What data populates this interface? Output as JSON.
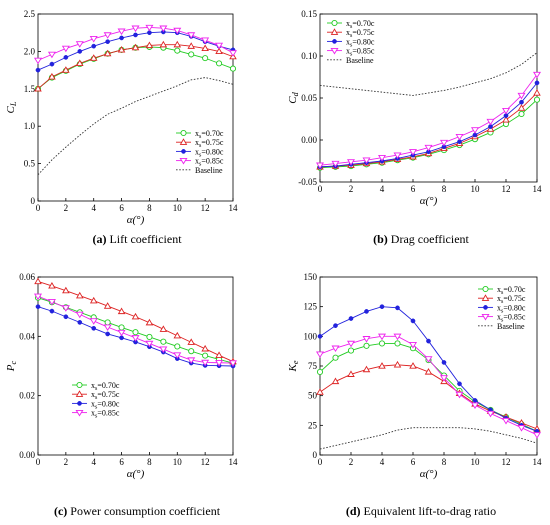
{
  "figure": {
    "panels": [
      {
        "letter": "(a)",
        "text": "Lift coefficient"
      },
      {
        "letter": "(b)",
        "text": "Drag coefficient"
      },
      {
        "letter": "(c)",
        "text": "Power consumption coefficient"
      },
      {
        "letter": "(d)",
        "text": "Equivalent lift-to-drag ratio"
      }
    ]
  },
  "colors": {
    "xs070": "#22cc22",
    "xs075": "#dd2222",
    "xs080": "#2222dd",
    "xs085": "#ee22ee",
    "baseline": "#333333"
  },
  "chart_data": [
    {
      "type": "line",
      "xlabel": "α(°)",
      "ylabel": "C_L",
      "xlim": [
        0,
        14
      ],
      "ylim": [
        0,
        2.5
      ],
      "xticks": [
        0,
        2,
        4,
        6,
        8,
        10,
        12,
        14
      ],
      "yticks": [
        0,
        0.5,
        1.0,
        1.5,
        2.0,
        2.5
      ],
      "ytick_labels": [
        "0",
        "0.5",
        "1.0",
        "1.5",
        "2.0",
        "2.5"
      ],
      "legend_position": "bottom-right",
      "x": [
        0,
        1,
        2,
        3,
        4,
        5,
        6,
        7,
        8,
        9,
        10,
        11,
        12,
        13,
        14
      ],
      "series": [
        {
          "name": "x_s=0.70c",
          "marker": "circle",
          "values": [
            1.5,
            1.65,
            1.74,
            1.83,
            1.9,
            1.97,
            2.02,
            2.05,
            2.06,
            2.05,
            2.01,
            1.96,
            1.91,
            1.84,
            1.77
          ]
        },
        {
          "name": "x_s=0.75c",
          "marker": "triangle-up",
          "values": [
            1.5,
            1.66,
            1.75,
            1.84,
            1.91,
            1.97,
            2.02,
            2.05,
            2.08,
            2.09,
            2.09,
            2.07,
            2.04,
            2.0,
            1.93
          ]
        },
        {
          "name": "x_s=0.80c",
          "marker": "star",
          "values": [
            1.75,
            1.83,
            1.92,
            2.0,
            2.07,
            2.13,
            2.18,
            2.22,
            2.25,
            2.26,
            2.25,
            2.2,
            2.13,
            2.07,
            2.02
          ]
        },
        {
          "name": "x_s=0.85c",
          "marker": "triangle-down",
          "values": [
            1.88,
            1.96,
            2.04,
            2.1,
            2.17,
            2.22,
            2.27,
            2.31,
            2.32,
            2.31,
            2.28,
            2.22,
            2.15,
            2.08,
            1.98
          ]
        },
        {
          "name": "Baseline",
          "marker": "none",
          "dashed": true,
          "values": [
            0.35,
            0.55,
            0.72,
            0.88,
            1.03,
            1.16,
            1.24,
            1.33,
            1.4,
            1.47,
            1.54,
            1.62,
            1.65,
            1.61,
            1.56
          ]
        }
      ]
    },
    {
      "type": "line",
      "xlabel": "α(°)",
      "ylabel": "C_d",
      "xlim": [
        0,
        14
      ],
      "ylim": [
        -0.05,
        0.15
      ],
      "xticks": [
        0,
        2,
        4,
        6,
        8,
        10,
        12,
        14
      ],
      "yticks": [
        -0.05,
        0,
        0.05,
        0.1,
        0.15
      ],
      "ytick_labels": [
        "-0.05",
        "0.00",
        "0.05",
        "0.10",
        "0.15"
      ],
      "legend_position": "top-left",
      "x": [
        0,
        1,
        2,
        3,
        4,
        5,
        6,
        7,
        8,
        9,
        10,
        11,
        12,
        13,
        14
      ],
      "series": [
        {
          "name": "x_s=0.70c",
          "marker": "circle",
          "values": [
            -0.033,
            -0.032,
            -0.031,
            -0.029,
            -0.027,
            -0.024,
            -0.021,
            -0.017,
            -0.012,
            -0.006,
            0.001,
            0.009,
            0.019,
            0.031,
            0.048
          ]
        },
        {
          "name": "x_s=0.75c",
          "marker": "triangle-up",
          "values": [
            -0.032,
            -0.031,
            -0.03,
            -0.028,
            -0.026,
            -0.023,
            -0.02,
            -0.016,
            -0.01,
            -0.004,
            0.004,
            0.013,
            0.024,
            0.038,
            0.056
          ]
        },
        {
          "name": "x_s=0.80c",
          "marker": "star",
          "values": [
            -0.032,
            -0.031,
            -0.029,
            -0.027,
            -0.025,
            -0.022,
            -0.018,
            -0.014,
            -0.008,
            -0.002,
            0.006,
            0.016,
            0.029,
            0.045,
            0.068
          ]
        },
        {
          "name": "x_s=0.85c",
          "marker": "triangle-down",
          "values": [
            -0.03,
            -0.028,
            -0.026,
            -0.024,
            -0.021,
            -0.018,
            -0.014,
            -0.009,
            -0.003,
            0.004,
            0.012,
            0.022,
            0.035,
            0.053,
            0.078
          ]
        },
        {
          "name": "Baseline",
          "marker": "none",
          "dashed": true,
          "values": [
            0.065,
            0.063,
            0.061,
            0.059,
            0.057,
            0.055,
            0.053,
            0.056,
            0.059,
            0.063,
            0.068,
            0.073,
            0.08,
            0.09,
            0.104
          ]
        }
      ]
    },
    {
      "type": "line",
      "xlabel": "α(°)",
      "ylabel": "P_c",
      "xlim": [
        0,
        14
      ],
      "ylim": [
        0,
        0.06
      ],
      "xticks": [
        0,
        2,
        4,
        6,
        8,
        10,
        12,
        14
      ],
      "yticks": [
        0,
        0.02,
        0.04,
        0.06
      ],
      "ytick_labels": [
        "0.00",
        "0.02",
        "0.04",
        "0.06"
      ],
      "legend_position": "bottom-left",
      "x": [
        0,
        1,
        2,
        3,
        4,
        5,
        6,
        7,
        8,
        9,
        10,
        11,
        12,
        13,
        14
      ],
      "series": [
        {
          "name": "x_s=0.70c",
          "marker": "circle",
          "values": [
            0.053,
            0.0515,
            0.0498,
            0.0481,
            0.0464,
            0.0447,
            0.043,
            0.0414,
            0.0398,
            0.0382,
            0.0366,
            0.035,
            0.0335,
            0.0322,
            0.031
          ]
        },
        {
          "name": "x_s=0.75c",
          "marker": "triangle-up",
          "values": [
            0.0585,
            0.057,
            0.0554,
            0.0537,
            0.052,
            0.0502,
            0.0484,
            0.0466,
            0.0446,
            0.0424,
            0.0402,
            0.038,
            0.0358,
            0.0336,
            0.0315
          ]
        },
        {
          "name": "x_s=0.80c",
          "marker": "star",
          "values": [
            0.05,
            0.0485,
            0.0466,
            0.0447,
            0.0427,
            0.0408,
            0.0395,
            0.0381,
            0.0365,
            0.0347,
            0.0325,
            0.031,
            0.0302,
            0.0301,
            0.03
          ]
        },
        {
          "name": "x_s=0.85c",
          "marker": "triangle-down",
          "values": [
            0.0535,
            0.0517,
            0.0496,
            0.0474,
            0.0452,
            0.0431,
            0.0413,
            0.0395,
            0.0376,
            0.0357,
            0.0337,
            0.032,
            0.0312,
            0.0311,
            0.031
          ]
        }
      ]
    },
    {
      "type": "line",
      "xlabel": "α(°)",
      "ylabel": "K_e",
      "xlim": [
        0,
        14
      ],
      "ylim": [
        0,
        150
      ],
      "xticks": [
        0,
        2,
        4,
        6,
        8,
        10,
        12,
        14
      ],
      "yticks": [
        0,
        25,
        50,
        75,
        100,
        125,
        150
      ],
      "ytick_labels": [
        "0",
        "25",
        "50",
        "75",
        "100",
        "125",
        "150"
      ],
      "legend_position": "top-right",
      "x": [
        0,
        1,
        2,
        3,
        4,
        5,
        6,
        7,
        8,
        9,
        10,
        11,
        12,
        13,
        14
      ],
      "series": [
        {
          "name": "x_s=0.70c",
          "marker": "circle",
          "values": [
            70,
            82,
            88,
            92,
            94,
            94,
            90,
            80,
            67,
            54,
            45,
            38,
            32,
            26,
            20
          ]
        },
        {
          "name": "x_s=0.75c",
          "marker": "triangle-up",
          "values": [
            53,
            62,
            68,
            72,
            75,
            76,
            75,
            70,
            62,
            52,
            43,
            37,
            32,
            27,
            22
          ]
        },
        {
          "name": "x_s=0.80c",
          "marker": "star",
          "values": [
            100,
            109,
            115,
            121,
            125,
            124,
            113,
            96,
            78,
            60,
            46,
            38,
            31,
            25,
            20
          ]
        },
        {
          "name": "x_s=0.85c",
          "marker": "triangle-down",
          "values": [
            85,
            90,
            94,
            98,
            100,
            100,
            93,
            81,
            65,
            51,
            42,
            35,
            29,
            23,
            17
          ]
        },
        {
          "name": "Baseline",
          "marker": "none",
          "dashed": true,
          "values": [
            5,
            8,
            11,
            14,
            17,
            21,
            23,
            23,
            23,
            23,
            22,
            20,
            17,
            14,
            10
          ]
        }
      ]
    }
  ]
}
